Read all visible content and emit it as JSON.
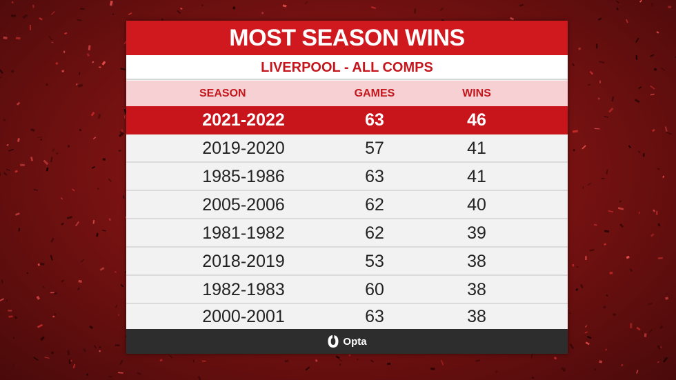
{
  "chart_data": {
    "type": "table",
    "title": "MOST SEASON WINS",
    "subtitle": "LIVERPOOL - ALL COMPS",
    "columns": [
      "SEASON",
      "GAMES",
      "WINS"
    ],
    "rows": [
      {
        "season": "2021-2022",
        "games": "63",
        "wins": "46"
      },
      {
        "season": "2019-2020",
        "games": "57",
        "wins": "41"
      },
      {
        "season": "1985-1986",
        "games": "63",
        "wins": "41"
      },
      {
        "season": "2005-2006",
        "games": "62",
        "wins": "40"
      },
      {
        "season": "1981-1982",
        "games": "62",
        "wins": "39"
      },
      {
        "season": "2018-2019",
        "games": "53",
        "wins": "38"
      },
      {
        "season": "1982-1983",
        "games": "60",
        "wins": "38"
      },
      {
        "season": "2000-2001",
        "games": "63",
        "wins": "38"
      }
    ]
  },
  "footer": {
    "brand": "Opta",
    "icon": "opta-logo-icon"
  },
  "colors": {
    "accent": "#d0181f",
    "header_bg": "#f6d0d2",
    "footer_bg": "#2d2d2d"
  }
}
